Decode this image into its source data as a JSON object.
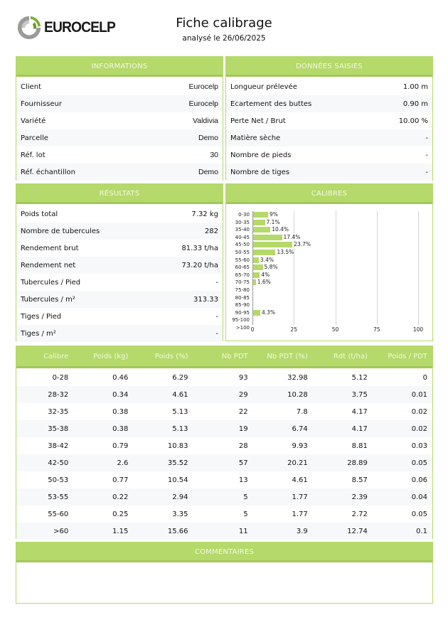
{
  "header": {
    "brand": "EUROCELP",
    "title": "Fiche calibrage",
    "subtitle": "analysé le 26/06/2025"
  },
  "colors": {
    "accent": "#b5d96a",
    "accent_dark": "#a3c75a",
    "header_text": "#f3f9e6"
  },
  "informations": {
    "title": "INFORMATIONS",
    "rows": [
      {
        "label": "Client",
        "value": "Eurocelp"
      },
      {
        "label": "Fournisseur",
        "value": "Eurocelp"
      },
      {
        "label": "Variété",
        "value": "Valdivia"
      },
      {
        "label": "Parcelle",
        "value": "Demo"
      },
      {
        "label": "Réf. lot",
        "value": "30"
      },
      {
        "label": "Réf. échantillon",
        "value": "Demo"
      }
    ]
  },
  "donnees": {
    "title": "DONNÉES SAISIES",
    "rows": [
      {
        "label": "Longueur prélevée",
        "value": "1.00 m"
      },
      {
        "label": "Ecartement des buttes",
        "value": "0.90 m"
      },
      {
        "label": "Perte Net / Brut",
        "value": "10.00 %"
      },
      {
        "label": "Matière sèche",
        "value": "-"
      },
      {
        "label": "Nombre de pieds",
        "value": "-"
      },
      {
        "label": "Nombre de tiges",
        "value": "-"
      }
    ]
  },
  "resultats": {
    "title": "RÉSULTATS",
    "rows": [
      {
        "label": "Poids total",
        "value": "7.32 kg"
      },
      {
        "label": "Nombre de tubercules",
        "value": "282"
      },
      {
        "label": "Rendement brut",
        "value": "81.33 t/ha"
      },
      {
        "label": "Rendement net",
        "value": "73.20 t/ha"
      },
      {
        "label": "Tubercules / Pied",
        "value": "-"
      },
      {
        "label": "Tubercules / m²",
        "value": "313.33"
      },
      {
        "label": "Tiges / Pied",
        "value": "-"
      },
      {
        "label": "Tiges / m²",
        "value": "-"
      }
    ]
  },
  "calibres": {
    "title": "CALIBRES"
  },
  "chart_data": {
    "type": "bar",
    "orientation": "horizontal",
    "title": "CALIBRES",
    "categories": [
      "0-30",
      "30-35",
      "35-40",
      "40-45",
      "45-50",
      "50-55",
      "55-60",
      "60-65",
      "65-70",
      "70-75",
      "75-80",
      "80-85",
      "85-90",
      "90-95",
      "95-100",
      ">100"
    ],
    "values": [
      9,
      7.1,
      10.4,
      17.4,
      23.7,
      13.5,
      3.4,
      5.8,
      4,
      1.6,
      null,
      null,
      null,
      4.3,
      null,
      null
    ],
    "data_labels": [
      "9%",
      "7.1%",
      "10.4%",
      "17.4%",
      "23.7%",
      "13.5%",
      "3.4%",
      "5.8%",
      "4%",
      "1.6%",
      "",
      "",
      "",
      "4.3%",
      "",
      ""
    ],
    "xlim": [
      0,
      100
    ],
    "xticks": [
      "0",
      "25",
      "50",
      "75",
      "100"
    ],
    "grid": true,
    "xlabel": "",
    "ylabel": ""
  },
  "table": {
    "headers": [
      "Calibre",
      "Poids (kg)",
      "Poids (%)",
      "Nb PDT",
      "Nb PDT (%)",
      "Rdt (t/ha)",
      "Poids / PDT"
    ],
    "rows": [
      [
        "0-28",
        "0.46",
        "6.29",
        "93",
        "32.98",
        "5.12",
        "0"
      ],
      [
        "28-32",
        "0.34",
        "4.61",
        "29",
        "10.28",
        "3.75",
        "0.01"
      ],
      [
        "32-35",
        "0.38",
        "5.13",
        "22",
        "7.8",
        "4.17",
        "0.02"
      ],
      [
        "35-38",
        "0.38",
        "5.13",
        "19",
        "6.74",
        "4.17",
        "0.02"
      ],
      [
        "38-42",
        "0.79",
        "10.83",
        "28",
        "9.93",
        "8.81",
        "0.03"
      ],
      [
        "42-50",
        "2.6",
        "35.52",
        "57",
        "20.21",
        "28.89",
        "0.05"
      ],
      [
        "50-53",
        "0.77",
        "10.54",
        "13",
        "4.61",
        "8.57",
        "0.06"
      ],
      [
        "53-55",
        "0.22",
        "2.94",
        "5",
        "1.77",
        "2.39",
        "0.04"
      ],
      [
        "55-60",
        "0.25",
        "3.35",
        "5",
        "1.77",
        "2.72",
        "0.05"
      ],
      [
        ">60",
        "1.15",
        "15.66",
        "11",
        "3.9",
        "12.74",
        "0.1"
      ]
    ]
  },
  "commentaires": {
    "title": "COMMENTAIRES",
    "text": ""
  }
}
